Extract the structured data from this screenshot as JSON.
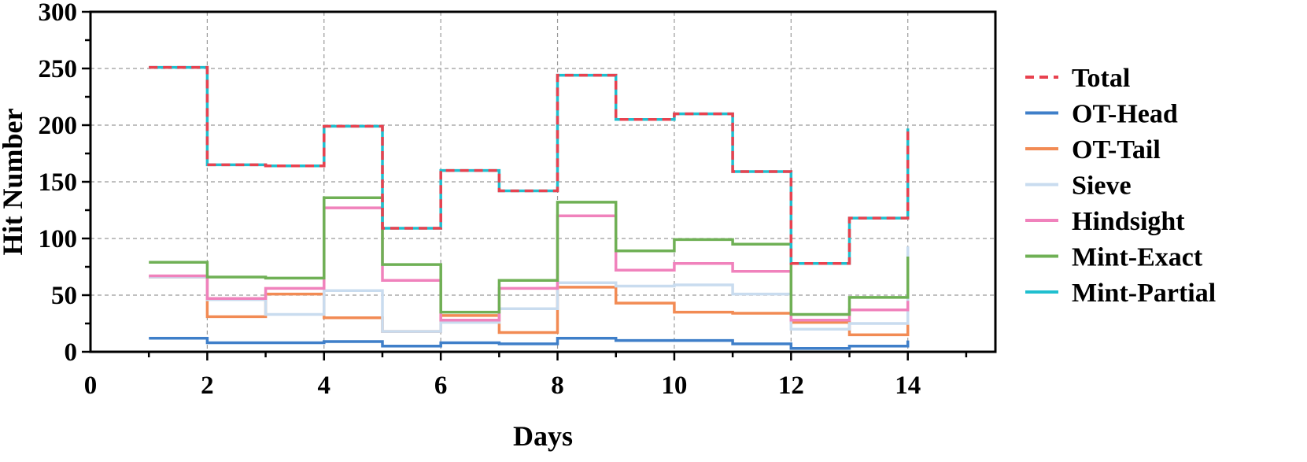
{
  "chart_data": {
    "type": "line",
    "step": "post",
    "xlabel": "Days",
    "ylabel": "Hit Number",
    "xlim": [
      0,
      15.5
    ],
    "ylim": [
      0,
      300
    ],
    "xticks": [
      0,
      2,
      4,
      6,
      8,
      10,
      12,
      14
    ],
    "yticks": [
      0,
      50,
      100,
      150,
      200,
      250,
      300
    ],
    "grid": true,
    "legend_position": "right",
    "x": [
      1,
      2,
      3,
      4,
      5,
      6,
      7,
      8,
      9,
      10,
      11,
      12,
      13,
      14
    ],
    "series": [
      {
        "name": "Total",
        "color": "#e8424f",
        "dash": "dashed",
        "values": [
          251,
          165,
          164,
          199,
          109,
          160,
          142,
          244,
          205,
          210,
          159,
          78,
          118,
          197
        ]
      },
      {
        "name": "OT-Head",
        "color": "#3f7fc9",
        "dash": "solid",
        "values": [
          12,
          8,
          8,
          9,
          5,
          8,
          7,
          12,
          10,
          10,
          7,
          3,
          5,
          10
        ]
      },
      {
        "name": "OT-Tail",
        "color": "#f28b54",
        "dash": "solid",
        "values": [
          66,
          31,
          51,
          30,
          18,
          32,
          17,
          57,
          43,
          35,
          34,
          26,
          15,
          25
        ]
      },
      {
        "name": "Sieve",
        "color": "#c9dcef",
        "dash": "solid",
        "values": [
          66,
          46,
          33,
          54,
          18,
          26,
          38,
          61,
          58,
          59,
          51,
          20,
          25,
          93
        ]
      },
      {
        "name": "Hindsight",
        "color": "#f082bc",
        "dash": "solid",
        "values": [
          67,
          47,
          56,
          127,
          63,
          28,
          56,
          120,
          72,
          78,
          71,
          28,
          37,
          45
        ]
      },
      {
        "name": "Mint-Exact",
        "color": "#6fb055",
        "dash": "solid",
        "values": [
          79,
          66,
          65,
          136,
          77,
          35,
          63,
          132,
          89,
          99,
          95,
          33,
          48,
          84
        ]
      },
      {
        "name": "Mint-Partial",
        "color": "#1fbfcf",
        "dash": "solid",
        "values": [
          251,
          165,
          164,
          199,
          109,
          160,
          142,
          244,
          205,
          210,
          159,
          78,
          118,
          197
        ]
      }
    ]
  }
}
